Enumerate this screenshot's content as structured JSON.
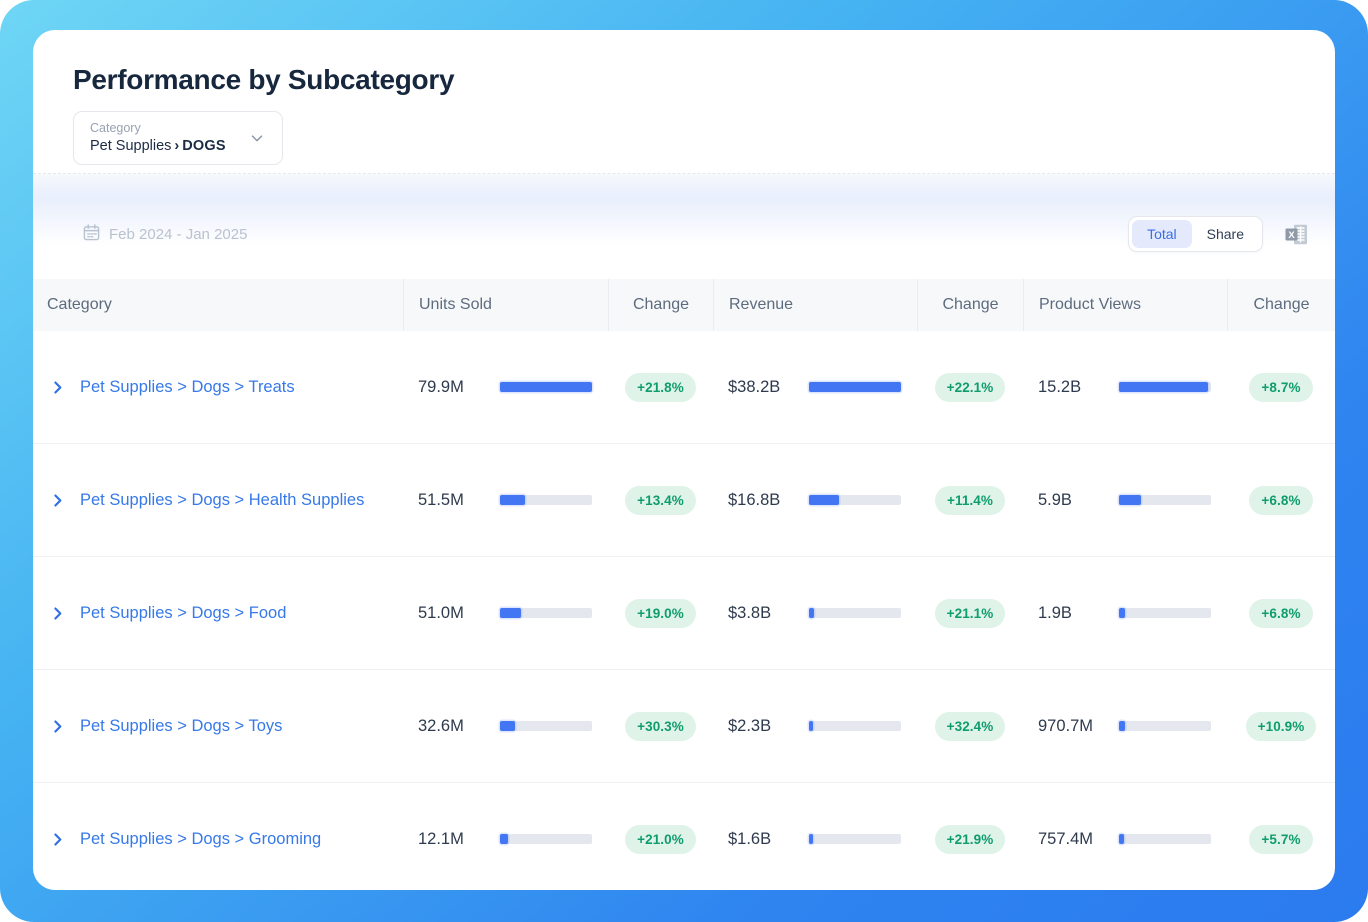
{
  "header": {
    "title": "Performance by Subcategory",
    "category_filter": {
      "label": "Category",
      "path_root": "Pet Supplies",
      "separator": "›",
      "selected": "DOGS"
    }
  },
  "toolbar": {
    "date_range": "Feb 2024 - Jan 2025",
    "toggle": {
      "options": [
        "Total",
        "Share"
      ],
      "selected": "Total"
    },
    "export_icon": "excel-export-icon"
  },
  "colors": {
    "accent_blue": "#4376f3",
    "link_blue": "#3679e8",
    "badge_green_text": "#0f9d6e",
    "badge_green_bg": "#dff3e9",
    "bar_track": "#e4e8ee",
    "title_navy": "#16273e",
    "frame_gradient_start": "#6fd6f5",
    "frame_gradient_end": "#2b7bef"
  },
  "table": {
    "columns": [
      "Category",
      "Units Sold",
      "Change",
      "Revenue",
      "Change",
      "Product Views",
      "Change"
    ],
    "rows": [
      {
        "category": "Pet Supplies > Dogs > Treats",
        "units_sold": "79.9M",
        "units_bar_pct": 100,
        "units_change": "+21.8%",
        "revenue": "$38.2B",
        "revenue_bar_pct": 100,
        "revenue_change": "+22.1%",
        "product_views": "15.2B",
        "views_bar_pct": 97,
        "views_change": "+8.7%"
      },
      {
        "category": "Pet Supplies > Dogs > Health Supplies",
        "units_sold": "51.5M",
        "units_bar_pct": 27,
        "units_change": "+13.4%",
        "revenue": "$16.8B",
        "revenue_bar_pct": 33,
        "revenue_change": "+11.4%",
        "product_views": "5.9B",
        "views_bar_pct": 24,
        "views_change": "+6.8%"
      },
      {
        "category": "Pet Supplies > Dogs > Food",
        "units_sold": "51.0M",
        "units_bar_pct": 23,
        "units_change": "+19.0%",
        "revenue": "$3.8B",
        "revenue_bar_pct": 5,
        "revenue_change": "+21.1%",
        "product_views": "1.9B",
        "views_bar_pct": 6,
        "views_change": "+6.8%"
      },
      {
        "category": "Pet Supplies > Dogs > Toys",
        "units_sold": "32.6M",
        "units_bar_pct": 16,
        "units_change": "+30.3%",
        "revenue": "$2.3B",
        "revenue_bar_pct": 4,
        "revenue_change": "+32.4%",
        "product_views": "970.7M",
        "views_bar_pct": 6,
        "views_change": "+10.9%"
      },
      {
        "category": "Pet Supplies > Dogs > Grooming",
        "units_sold": "12.1M",
        "units_bar_pct": 9,
        "units_change": "+21.0%",
        "revenue": "$1.6B",
        "revenue_bar_pct": 4,
        "revenue_change": "+21.9%",
        "product_views": "757.4M",
        "views_bar_pct": 5,
        "views_change": "+5.7%"
      }
    ]
  }
}
